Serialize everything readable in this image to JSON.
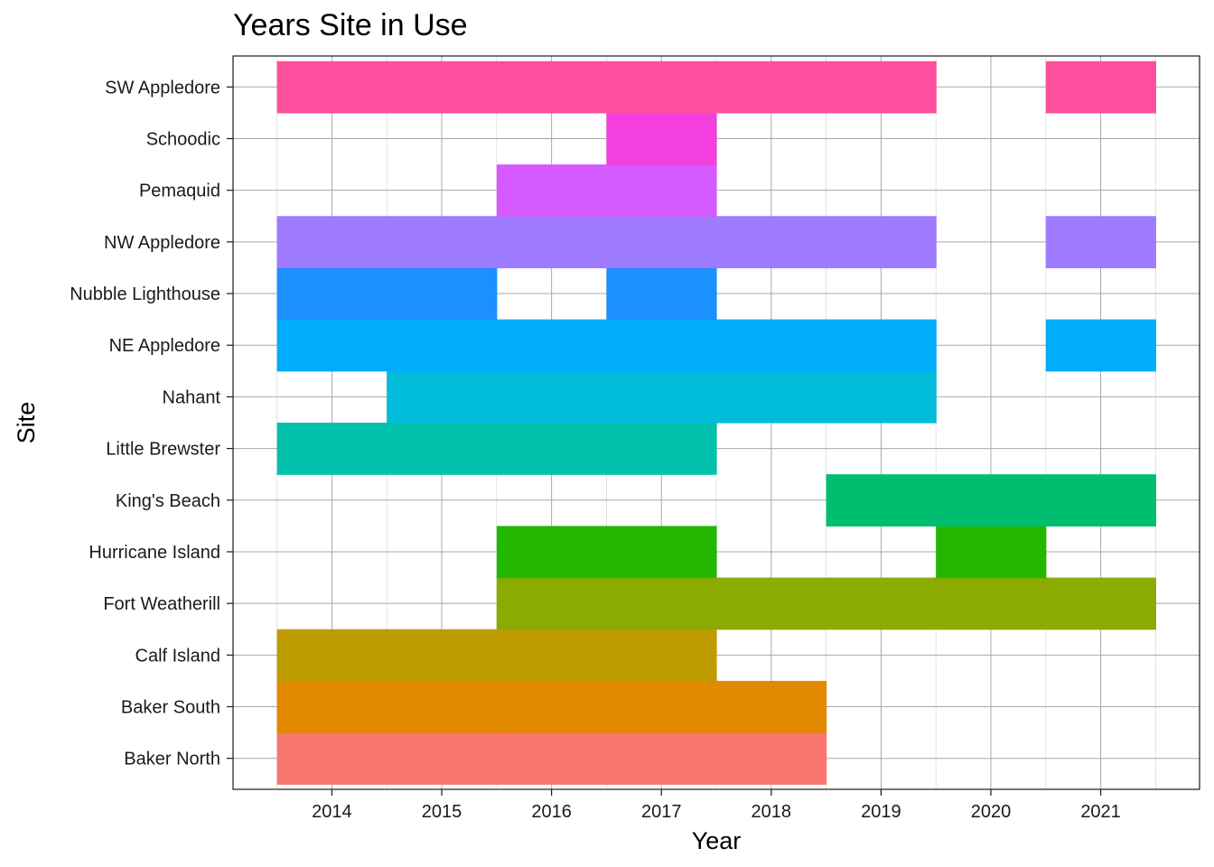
{
  "chart_data": {
    "type": "tile",
    "title": "Years Site in Use",
    "xlabel": "Year",
    "ylabel": "Site",
    "x_ticks": [
      2014,
      2015,
      2016,
      2017,
      2018,
      2019,
      2020,
      2021
    ],
    "xlim": [
      2013.1,
      2021.9
    ],
    "grid": true,
    "sites": [
      {
        "name": "Baker North",
        "color": "#F8766D",
        "years": [
          2014,
          2015,
          2016,
          2017,
          2018
        ]
      },
      {
        "name": "Baker South",
        "color": "#E18A00",
        "years": [
          2014,
          2015,
          2016,
          2017,
          2018
        ]
      },
      {
        "name": "Calf Island",
        "color": "#BE9C00",
        "years": [
          2014,
          2015,
          2016,
          2017
        ]
      },
      {
        "name": "Fort Weatherill",
        "color": "#8CAB00",
        "years": [
          2016,
          2017,
          2018,
          2019,
          2020,
          2021
        ]
      },
      {
        "name": "Hurricane Island",
        "color": "#24B700",
        "years": [
          2016,
          2017,
          2020
        ]
      },
      {
        "name": "King's Beach",
        "color": "#00BE70",
        "years": [
          2019,
          2020,
          2021
        ]
      },
      {
        "name": "Little Brewster",
        "color": "#00C1AB",
        "years": [
          2014,
          2015,
          2016,
          2017
        ]
      },
      {
        "name": "Nahant",
        "color": "#00BBDA",
        "years": [
          2015,
          2016,
          2017,
          2018,
          2019
        ]
      },
      {
        "name": "NE Appledore",
        "color": "#00ACFC",
        "years": [
          2014,
          2015,
          2016,
          2017,
          2018,
          2019,
          2021
        ]
      },
      {
        "name": "Nubble Lighthouse",
        "color": "#1C90FF",
        "years": [
          2014,
          2015,
          2017
        ]
      },
      {
        "name": "NW Appledore",
        "color": "#9F7BFF",
        "years": [
          2014,
          2015,
          2016,
          2017,
          2018,
          2019,
          2021
        ]
      },
      {
        "name": "Pemaquid",
        "color": "#D55AFF",
        "years": [
          2016,
          2017
        ]
      },
      {
        "name": "Schoodic",
        "color": "#F23FDD",
        "years": [
          2017
        ]
      },
      {
        "name": "SW Appledore",
        "color": "#FF4E9E",
        "years": [
          2014,
          2015,
          2016,
          2017,
          2018,
          2019,
          2021
        ]
      }
    ]
  }
}
